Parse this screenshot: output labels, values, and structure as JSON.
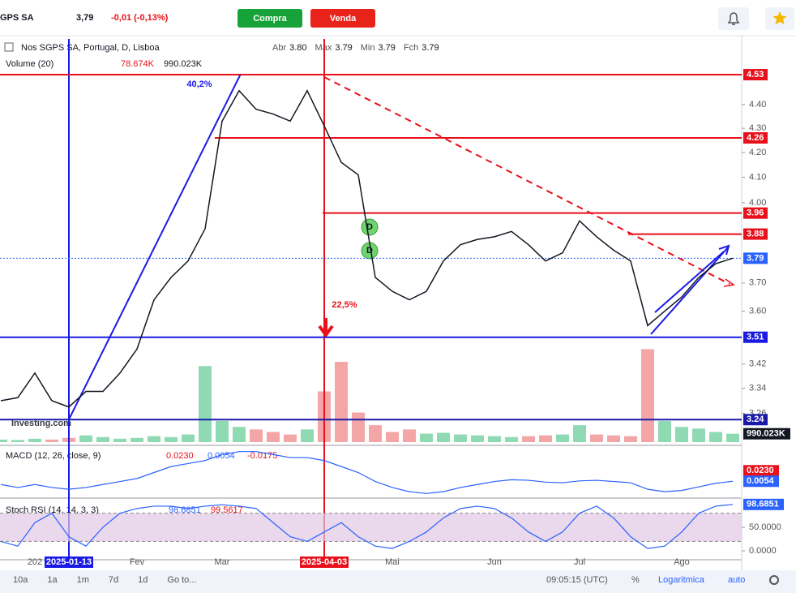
{
  "header": {
    "symbol": "GPS SA",
    "price": "3,79",
    "change": "-0,01 (-0,13%)",
    "buy": "Compra",
    "sell": "Venda"
  },
  "legend": {
    "instrument": "Nos SGPS SA, Portugal, D, Lisboa",
    "ohlc": [
      {
        "label": "Abr",
        "value": "3.80"
      },
      {
        "label": "Max",
        "value": "3.79"
      },
      {
        "label": "Min",
        "value": "3.79"
      },
      {
        "label": "Fch",
        "value": "3.79"
      }
    ],
    "volume_name": "Volume (20)",
    "volume_values": [
      "78.674K",
      "990.023K"
    ]
  },
  "logo": "Investing.com",
  "chart_data": [
    {
      "type": "line",
      "log_scale": true,
      "color": "#131722",
      "categories": [
        null,
        null,
        "202",
        null,
        "2025-01-13",
        null,
        null,
        null,
        "Fev",
        null,
        null,
        null,
        null,
        "Mar",
        null,
        null,
        null,
        null,
        null,
        "2025-04-03",
        null,
        null,
        null,
        "Mai",
        null,
        null,
        null,
        null,
        null,
        "Jun",
        null,
        null,
        null,
        null,
        "Jul",
        null,
        null,
        null,
        null,
        null,
        "Ago",
        null,
        null,
        null
      ],
      "values": [
        3.3,
        3.31,
        3.39,
        3.3,
        3.28,
        3.33,
        3.33,
        3.39,
        3.47,
        3.64,
        3.72,
        3.78,
        3.9,
        4.33,
        4.46,
        4.38,
        4.36,
        4.33,
        4.46,
        4.31,
        4.16,
        4.11,
        3.72,
        3.67,
        3.64,
        3.67,
        3.78,
        3.84,
        3.86,
        3.87,
        3.89,
        3.84,
        3.78,
        3.81,
        3.93,
        3.87,
        3.82,
        3.78,
        3.55,
        3.6,
        3.65,
        3.72,
        3.77,
        3.79
      ],
      "ylim": [
        3.17,
        4.69
      ],
      "yticks": [
        3.26,
        3.34,
        3.42,
        {
          "value": 3.6,
          "label": "3.60"
        },
        {
          "value": 3.7,
          "label": "3.70"
        },
        {
          "value": 4.0,
          "label": "4.00"
        },
        {
          "value": 4.1,
          "label": "4.10"
        },
        {
          "value": 4.2,
          "label": "4.20"
        },
        {
          "value": 4.3,
          "label": "4.30"
        },
        {
          "value": 4.4,
          "label": "4.40"
        }
      ],
      "levels": [
        {
          "value": 4.53,
          "color": "#e8101a"
        },
        {
          "value": 4.26,
          "color": "#e8101a"
        },
        {
          "value": 3.96,
          "color": "#e8101a"
        },
        {
          "value": 3.88,
          "color": "#e8101a"
        },
        {
          "value": 3.79,
          "color": "#2962ff"
        },
        {
          "value": 3.51,
          "color": "#1a1ae6"
        },
        {
          "value": 3.24,
          "color": "#1a1aa8"
        }
      ],
      "vlines": [
        {
          "at": "2025-01-13",
          "color": "#1a1ae6"
        },
        {
          "at": "2025-04-03",
          "color": "#e8101a"
        }
      ],
      "annotations": [
        {
          "text": "40,2%",
          "color": "#1a1ae6"
        },
        {
          "text": "22,5%",
          "color": "#e8101a"
        }
      ],
      "markers": [
        "D",
        "D"
      ],
      "volume": {
        "values": [
          300,
          250,
          400,
          300,
          500,
          800,
          600,
          400,
          500,
          700,
          600,
          900,
          9000,
          2500,
          1800,
          1500,
          1200,
          900,
          1500,
          6000,
          9500,
          3500,
          2000,
          1200,
          1500,
          1000,
          1100,
          900,
          800,
          700,
          600,
          700,
          800,
          900,
          2000,
          900,
          800,
          700,
          11000,
          2500,
          1800,
          1600,
          1200,
          990.023
        ],
        "ylim": [
          0,
          12000
        ],
        "up_color": "#8fd9b3",
        "down_color": "#f4a6a6",
        "last": {
          "value": 990.023,
          "label": "990.023K"
        }
      }
    },
    {
      "type": "line",
      "title": "MACD (12, 26, close, 9)",
      "legend_values": [
        "0.0230",
        "0.0054",
        "-0.0175"
      ],
      "color": "#2962ff",
      "values": [
        0,
        -0.005,
        0,
        -0.005,
        -0.008,
        -0.005,
        0,
        0.005,
        0.01,
        0.02,
        0.03,
        0.035,
        0.04,
        0.05,
        0.055,
        0.055,
        0.05,
        0.045,
        0.045,
        0.04,
        0.03,
        0.02,
        0.005,
        -0.005,
        -0.012,
        -0.015,
        -0.012,
        -0.005,
        0,
        0.005,
        0.008,
        0.007,
        0.004,
        0.003,
        0.006,
        0.007,
        0.005,
        0.003,
        -0.008,
        -0.012,
        -0.01,
        -0.004,
        0.002,
        0.0054
      ],
      "ylim": [
        -0.02,
        0.06
      ],
      "right_labels": [
        {
          "value": 0.023,
          "label": "0.0230",
          "color": "#e8101a"
        },
        {
          "value": 0.0054,
          "label": "0.0054",
          "color": "#2962ff"
        }
      ]
    },
    {
      "type": "line",
      "title": "Stoch RSI (14, 14, 3, 3)",
      "legend_values": [
        "98.6851",
        "99.5617"
      ],
      "color": "#2962ff",
      "values": [
        20,
        10,
        60,
        80,
        30,
        10,
        50,
        80,
        90,
        95,
        95,
        90,
        95,
        98,
        95,
        90,
        60,
        30,
        20,
        40,
        60,
        30,
        10,
        5,
        20,
        40,
        70,
        90,
        95,
        90,
        70,
        40,
        20,
        40,
        80,
        95,
        70,
        30,
        5,
        10,
        40,
        80,
        95,
        98.6851
      ],
      "ylim": [
        -19,
        107
      ],
      "yticks": [
        {
          "value": 50,
          "label": "50.0000"
        },
        {
          "value": 0,
          "label": "0.0000"
        }
      ],
      "band": [
        20,
        80
      ],
      "band_color": "#e1c8e6"
    }
  ],
  "toolbar": {
    "ranges": [
      "10a",
      "1a",
      "1m",
      "7d",
      "1d"
    ],
    "goto": "Go to...",
    "time": "09:05:15 (UTC)",
    "percent": "%",
    "log": "Logaritmica",
    "auto": "auto"
  }
}
